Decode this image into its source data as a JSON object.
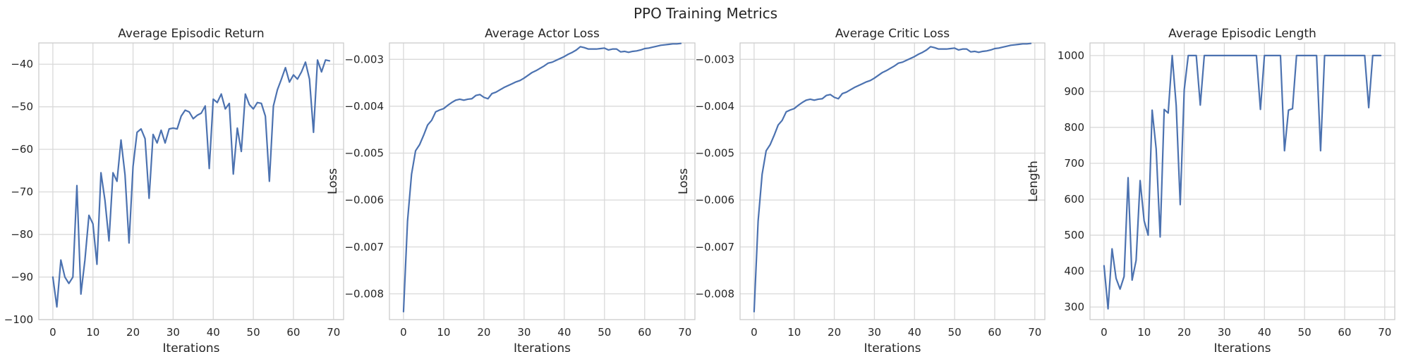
{
  "figure": {
    "suptitle": "PPO Training Metrics"
  },
  "chart_data": [
    {
      "type": "line",
      "title": "Average Episodic Return",
      "xlabel": "Iterations",
      "ylabel": "",
      "xlim": [
        -3.5,
        72.5
      ],
      "ylim": [
        -100,
        -35
      ],
      "xticks": [
        0,
        10,
        20,
        30,
        40,
        50,
        60,
        70
      ],
      "yticks": [
        -100,
        -90,
        -80,
        -70,
        -60,
        -50,
        -40
      ],
      "xtick_labels": [
        "0",
        "10",
        "20",
        "30",
        "40",
        "50",
        "60",
        "70"
      ],
      "ytick_labels": [
        "−100",
        "−90",
        "−80",
        "−70",
        "−60",
        "−50",
        "−40"
      ],
      "grid": true,
      "color": "#4c72b0",
      "series": [
        {
          "x": [
            0,
            1,
            2,
            3,
            4,
            5,
            6,
            7,
            8,
            9,
            10,
            11,
            12,
            13,
            14,
            15,
            16,
            17,
            18,
            19,
            20,
            21,
            22,
            23,
            24,
            25,
            26,
            27,
            28,
            29,
            30,
            31,
            32,
            33,
            34,
            35,
            36,
            37,
            38,
            39,
            40,
            41,
            42,
            43,
            44,
            45,
            46,
            47,
            48,
            49,
            50,
            51,
            52,
            53,
            54,
            55,
            56,
            57,
            58,
            59,
            60,
            61,
            62,
            63,
            64,
            65,
            66,
            67,
            68,
            69
          ],
          "y": [
            -90,
            -97,
            -86,
            -90,
            -91.5,
            -90,
            -68.5,
            -94,
            -86,
            -75.5,
            -77.5,
            -87,
            -65.5,
            -72,
            -81.5,
            -65.5,
            -67.5,
            -57.8,
            -66,
            -82,
            -64,
            -56,
            -55.2,
            -57.5,
            -71.5,
            -56.5,
            -58.5,
            -55.5,
            -58.5,
            -55.2,
            -55,
            -55.2,
            -52.2,
            -50.8,
            -51.2,
            -52.8,
            -52,
            -51.5,
            -49.8,
            -64.5,
            -48.2,
            -49,
            -47,
            -50.5,
            -49.2,
            -65.8,
            -55,
            -60.5,
            -47,
            -49.5,
            -50.5,
            -49,
            -49.2,
            -52.2,
            -67.5,
            -49.8,
            -46,
            -43.5,
            -40.8,
            -44.2,
            -42.5,
            -43.5,
            -41.8,
            -39.5,
            -43.5,
            -56,
            -39,
            -41.8,
            -39,
            -39.2
          ]
        }
      ]
    },
    {
      "type": "line",
      "title": "Average Actor Loss",
      "xlabel": "Iterations",
      "ylabel": "Loss",
      "xlim": [
        -3.5,
        72.5
      ],
      "ylim": [
        -0.00855,
        -0.00265
      ],
      "xticks": [
        0,
        10,
        20,
        30,
        40,
        50,
        60,
        70
      ],
      "yticks": [
        -0.008,
        -0.007,
        -0.006,
        -0.005,
        -0.004,
        -0.003
      ],
      "xtick_labels": [
        "0",
        "10",
        "20",
        "30",
        "40",
        "50",
        "60",
        "70"
      ],
      "ytick_labels": [
        "−0.008",
        "−0.007",
        "−0.006",
        "−0.005",
        "−0.004",
        "−0.003"
      ],
      "grid": true,
      "color": "#4c72b0",
      "series": [
        {
          "x": [
            0,
            1,
            2,
            3,
            4,
            5,
            6,
            7,
            8,
            9,
            10,
            11,
            12,
            13,
            14,
            15,
            16,
            17,
            18,
            19,
            20,
            21,
            22,
            23,
            24,
            25,
            26,
            27,
            28,
            29,
            30,
            31,
            32,
            33,
            34,
            35,
            36,
            37,
            38,
            39,
            40,
            41,
            42,
            43,
            44,
            45,
            46,
            47,
            48,
            49,
            50,
            51,
            52,
            53,
            54,
            55,
            56,
            57,
            58,
            59,
            60,
            61,
            62,
            63,
            64,
            65,
            66,
            67,
            68,
            69
          ],
          "y": [
            -0.00838,
            -0.00645,
            -0.00545,
            -0.00495,
            -0.00482,
            -0.00462,
            -0.0044,
            -0.0043,
            -0.00412,
            -0.00408,
            -0.00405,
            -0.00398,
            -0.00392,
            -0.00387,
            -0.00385,
            -0.00387,
            -0.00385,
            -0.00384,
            -0.00377,
            -0.00375,
            -0.00381,
            -0.00384,
            -0.00373,
            -0.0037,
            -0.00365,
            -0.0036,
            -0.00356,
            -0.00352,
            -0.00348,
            -0.00345,
            -0.0034,
            -0.00334,
            -0.00328,
            -0.00324,
            -0.00319,
            -0.00314,
            -0.00308,
            -0.00306,
            -0.00302,
            -0.00298,
            -0.00294,
            -0.00289,
            -0.00285,
            -0.0028,
            -0.00273,
            -0.00275,
            -0.00278,
            -0.00278,
            -0.00278,
            -0.00277,
            -0.00276,
            -0.0028,
            -0.00278,
            -0.00278,
            -0.00284,
            -0.00283,
            -0.00285,
            -0.00283,
            -0.00282,
            -0.0028,
            -0.00277,
            -0.00276,
            -0.00274,
            -0.00272,
            -0.0027,
            -0.00269,
            -0.00268,
            -0.00267,
            -0.00267,
            -0.00266
          ]
        }
      ]
    },
    {
      "type": "line",
      "title": "Average Critic Loss",
      "xlabel": "Iterations",
      "ylabel": "Loss",
      "xlim": [
        -3.5,
        72.5
      ],
      "ylim": [
        -0.00855,
        -0.00265
      ],
      "xticks": [
        0,
        10,
        20,
        30,
        40,
        50,
        60,
        70
      ],
      "yticks": [
        -0.008,
        -0.007,
        -0.006,
        -0.005,
        -0.004,
        -0.003
      ],
      "xtick_labels": [
        "0",
        "10",
        "20",
        "30",
        "40",
        "50",
        "60",
        "70"
      ],
      "ytick_labels": [
        "−0.008",
        "−0.007",
        "−0.006",
        "−0.005",
        "−0.004",
        "−0.003"
      ],
      "grid": true,
      "color": "#4c72b0",
      "series": [
        {
          "x": [
            0,
            1,
            2,
            3,
            4,
            5,
            6,
            7,
            8,
            9,
            10,
            11,
            12,
            13,
            14,
            15,
            16,
            17,
            18,
            19,
            20,
            21,
            22,
            23,
            24,
            25,
            26,
            27,
            28,
            29,
            30,
            31,
            32,
            33,
            34,
            35,
            36,
            37,
            38,
            39,
            40,
            41,
            42,
            43,
            44,
            45,
            46,
            47,
            48,
            49,
            50,
            51,
            52,
            53,
            54,
            55,
            56,
            57,
            58,
            59,
            60,
            61,
            62,
            63,
            64,
            65,
            66,
            67,
            68,
            69
          ],
          "y": [
            -0.00838,
            -0.00645,
            -0.00545,
            -0.00495,
            -0.00482,
            -0.00462,
            -0.0044,
            -0.0043,
            -0.00412,
            -0.00408,
            -0.00405,
            -0.00398,
            -0.00392,
            -0.00387,
            -0.00385,
            -0.00387,
            -0.00385,
            -0.00384,
            -0.00377,
            -0.00375,
            -0.00381,
            -0.00384,
            -0.00373,
            -0.0037,
            -0.00365,
            -0.0036,
            -0.00356,
            -0.00352,
            -0.00348,
            -0.00345,
            -0.0034,
            -0.00334,
            -0.00328,
            -0.00324,
            -0.00319,
            -0.00314,
            -0.00308,
            -0.00306,
            -0.00302,
            -0.00298,
            -0.00294,
            -0.00289,
            -0.00285,
            -0.0028,
            -0.00273,
            -0.00275,
            -0.00278,
            -0.00278,
            -0.00278,
            -0.00277,
            -0.00276,
            -0.0028,
            -0.00278,
            -0.00278,
            -0.00284,
            -0.00283,
            -0.00285,
            -0.00283,
            -0.00282,
            -0.0028,
            -0.00277,
            -0.00276,
            -0.00274,
            -0.00272,
            -0.0027,
            -0.00269,
            -0.00268,
            -0.00267,
            -0.00267,
            -0.00266
          ]
        }
      ]
    },
    {
      "type": "line",
      "title": "Average Episodic Length",
      "xlabel": "Iterations",
      "ylabel": "Length",
      "xlim": [
        -3.5,
        72.5
      ],
      "ylim": [
        265,
        1035
      ],
      "xticks": [
        0,
        10,
        20,
        30,
        40,
        50,
        60,
        70
      ],
      "yticks": [
        300,
        400,
        500,
        600,
        700,
        800,
        900,
        1000
      ],
      "xtick_labels": [
        "0",
        "10",
        "20",
        "30",
        "40",
        "50",
        "60",
        "70"
      ],
      "ytick_labels": [
        "300",
        "400",
        "500",
        "600",
        "700",
        "800",
        "900",
        "1000"
      ],
      "grid": true,
      "color": "#4c72b0",
      "series": [
        {
          "x": [
            0,
            1,
            2,
            3,
            4,
            5,
            6,
            7,
            8,
            9,
            10,
            11,
            12,
            13,
            14,
            15,
            16,
            17,
            18,
            19,
            20,
            21,
            22,
            23,
            24,
            25,
            26,
            27,
            28,
            29,
            30,
            31,
            32,
            33,
            34,
            35,
            36,
            37,
            38,
            39,
            40,
            41,
            42,
            43,
            44,
            45,
            46,
            47,
            48,
            49,
            50,
            51,
            52,
            53,
            54,
            55,
            56,
            57,
            58,
            59,
            60,
            61,
            62,
            63,
            64,
            65,
            66,
            67,
            68,
            69
          ],
          "y": [
            415,
            295,
            462,
            380,
            350,
            385,
            660,
            375,
            430,
            652,
            540,
            500,
            848,
            740,
            495,
            850,
            840,
            1000,
            860,
            585,
            905,
            1000,
            1000,
            1000,
            862,
            1000,
            1000,
            1000,
            1000,
            1000,
            1000,
            1000,
            1000,
            1000,
            1000,
            1000,
            1000,
            1000,
            1000,
            850,
            1000,
            1000,
            1000,
            1000,
            1000,
            735,
            848,
            852,
            1000,
            1000,
            1000,
            1000,
            1000,
            1000,
            735,
            1000,
            1000,
            1000,
            1000,
            1000,
            1000,
            1000,
            1000,
            1000,
            1000,
            1000,
            855,
            1000,
            1000,
            1000
          ]
        }
      ]
    }
  ]
}
